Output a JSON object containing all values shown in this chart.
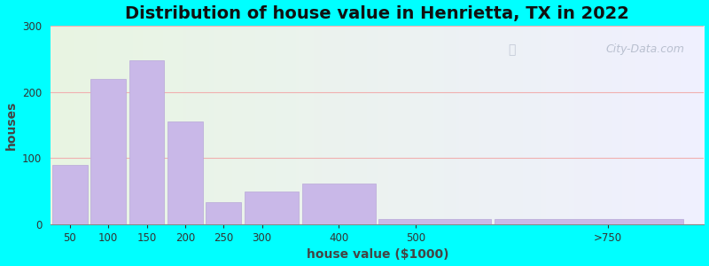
{
  "title": "Distribution of house value in Henrietta, TX in 2022",
  "xlabel": "house value ($1000)",
  "ylabel": "houses",
  "bar_labels": [
    "50",
    "100",
    "150",
    "200",
    "250",
    "300",
    "400",
    "500",
    ">750"
  ],
  "bar_values": [
    90,
    220,
    248,
    155,
    33,
    50,
    62,
    8,
    8
  ],
  "bin_edges": [
    25,
    75,
    125,
    175,
    225,
    275,
    350,
    450,
    600,
    850
  ],
  "xtick_positions": [
    50,
    100,
    150,
    200,
    250,
    300,
    400,
    500,
    750
  ],
  "xtick_labels": [
    "50",
    "100",
    "150",
    "200",
    "250",
    "300",
    "400",
    "500",
    ">750"
  ],
  "bar_color": "#c9b8e8",
  "bar_edgecolor": "#b8a8d8",
  "ylim": [
    0,
    300
  ],
  "xlim": [
    25,
    875
  ],
  "yticks": [
    0,
    100,
    200,
    300
  ],
  "background_outer": "#00ffff",
  "background_inner_left": "#e8f5e2",
  "background_inner_right": "#f0f0ff",
  "title_fontsize": 14,
  "axis_label_fontsize": 10,
  "watermark_text": "City-Data.com",
  "watermark_color": "#b0b8c8",
  "grid_color": "#f0b0b0",
  "grid_linewidth": 0.8
}
